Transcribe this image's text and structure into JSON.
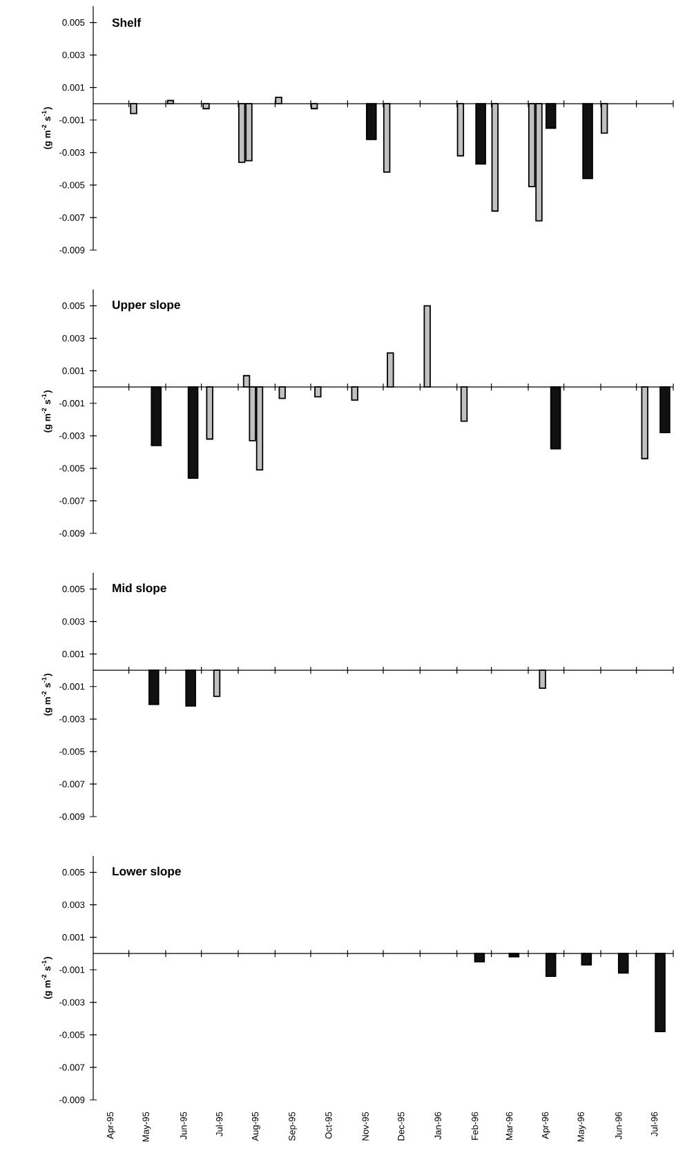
{
  "chart_data": [
    {
      "type": "bar",
      "title": "Shelf",
      "ylabel": "(g m$^{-2}$ s$^{-1}$)",
      "xlim": [
        "1995-04-01",
        "1996-08-01"
      ],
      "ylim": [
        -0.009,
        0.006
      ],
      "yticks": [
        -0.009,
        -0.007,
        -0.005,
        -0.003,
        -0.001,
        0.001,
        0.003,
        0.005
      ],
      "tick_labels": "y",
      "xticks": [
        {
          "value": "1995-04-01",
          "label": null
        },
        {
          "value": "1995-05-01",
          "label": null
        },
        {
          "value": "1995-06-01",
          "label": null
        },
        {
          "value": "1995-07-01",
          "label": null
        },
        {
          "value": "1995-08-01",
          "label": null
        },
        {
          "value": "1995-09-01",
          "label": null
        },
        {
          "value": "1995-10-01",
          "label": null
        },
        {
          "value": "1995-11-01",
          "label": null
        },
        {
          "value": "1995-12-01",
          "label": null
        },
        {
          "value": "1996-01-01",
          "label": null
        },
        {
          "value": "1996-02-01",
          "label": null
        },
        {
          "value": "1996-03-01",
          "label": null
        },
        {
          "value": "1996-04-01",
          "label": null
        },
        {
          "value": "1996-05-01",
          "label": null
        },
        {
          "value": "1996-06-01",
          "label": null
        },
        {
          "value": "1996-07-01",
          "label": null
        },
        {
          "value": "1996-08-01",
          "label": null
        }
      ],
      "series": [
        {
          "color": "#c0c0c0",
          "x": [
            "1995-05-05",
            "1995-06-05",
            "1995-07-05",
            "1995-08-04",
            "1995-08-10",
            "1995-09-04",
            "1995-10-04",
            "1995-12-04",
            "1996-02-04",
            "1996-03-04",
            "1996-04-04",
            "1996-04-10",
            "1996-06-04"
          ],
          "values": [
            -0.0006,
            0.0002,
            -0.0003,
            -0.0036,
            -0.0035,
            0.0004,
            -0.0003,
            -0.0042,
            -0.0032,
            -0.0066,
            -0.0051,
            -0.0072,
            -0.0018
          ]
        },
        {
          "color": "#111111",
          "x": [
            "1995-11-21",
            "1996-02-21",
            "1996-04-20",
            "1996-05-21"
          ],
          "values": [
            -0.0022,
            -0.0037,
            -0.0015,
            -0.0046
          ]
        }
      ]
    },
    {
      "type": "bar",
      "title": "Upper slope",
      "ylabel": "(g m$^{-2}$ s$^{-1}$)",
      "xlim": [
        "1995-04-01",
        "1996-08-01"
      ],
      "ylim": [
        -0.009,
        0.006
      ],
      "yticks": [
        -0.009,
        -0.007,
        -0.005,
        -0.003,
        -0.001,
        0.001,
        0.003,
        0.005
      ],
      "tick_labels": "y",
      "xticks": [
        {
          "value": "1995-04-01",
          "label": null
        },
        {
          "value": "1995-05-01",
          "label": null
        },
        {
          "value": "1995-06-01",
          "label": null
        },
        {
          "value": "1995-07-01",
          "label": null
        },
        {
          "value": "1995-08-01",
          "label": null
        },
        {
          "value": "1995-09-01",
          "label": null
        },
        {
          "value": "1995-10-01",
          "label": null
        },
        {
          "value": "1995-11-01",
          "label": null
        },
        {
          "value": "1995-12-01",
          "label": null
        },
        {
          "value": "1996-01-01",
          "label": null
        },
        {
          "value": "1996-02-01",
          "label": null
        },
        {
          "value": "1996-03-01",
          "label": null
        },
        {
          "value": "1996-04-01",
          "label": null
        },
        {
          "value": "1996-05-01",
          "label": null
        },
        {
          "value": "1996-06-01",
          "label": null
        },
        {
          "value": "1996-07-01",
          "label": null
        },
        {
          "value": "1996-08-01",
          "label": null
        }
      ],
      "series": [
        {
          "color": "#c0c0c0",
          "x": [
            "1995-07-08",
            "1995-08-08",
            "1995-08-13",
            "1995-08-19",
            "1995-09-07",
            "1995-10-07",
            "1995-11-07",
            "1995-12-07",
            "1996-01-07",
            "1996-02-07",
            "1996-07-08"
          ],
          "values": [
            -0.0032,
            0.0007,
            -0.0033,
            -0.0051,
            -0.0007,
            -0.0006,
            -0.0008,
            0.0021,
            0.005,
            -0.0021,
            -0.0044
          ]
        },
        {
          "color": "#111111",
          "x": [
            "1995-05-24",
            "1995-06-24",
            "1996-04-24",
            "1996-07-25"
          ],
          "values": [
            -0.0036,
            -0.0056,
            -0.0038,
            -0.0028
          ]
        }
      ]
    },
    {
      "type": "bar",
      "title": "Mid slope",
      "ylabel": "(g m$^{-2}$ s$^{-1}$)",
      "xlim": [
        "1995-04-01",
        "1996-08-01"
      ],
      "ylim": [
        -0.009,
        0.006
      ],
      "yticks": [
        -0.009,
        -0.007,
        -0.005,
        -0.003,
        -0.001,
        0.001,
        0.003,
        0.005
      ],
      "tick_labels": "y",
      "xticks": [
        {
          "value": "1995-04-01",
          "label": null
        },
        {
          "value": "1995-05-01",
          "label": null
        },
        {
          "value": "1995-06-01",
          "label": null
        },
        {
          "value": "1995-07-01",
          "label": null
        },
        {
          "value": "1995-08-01",
          "label": null
        },
        {
          "value": "1995-09-01",
          "label": null
        },
        {
          "value": "1995-10-01",
          "label": null
        },
        {
          "value": "1995-11-01",
          "label": null
        },
        {
          "value": "1995-12-01",
          "label": null
        },
        {
          "value": "1996-01-01",
          "label": null
        },
        {
          "value": "1996-02-01",
          "label": null
        },
        {
          "value": "1996-03-01",
          "label": null
        },
        {
          "value": "1996-04-01",
          "label": null
        },
        {
          "value": "1996-05-01",
          "label": null
        },
        {
          "value": "1996-06-01",
          "label": null
        },
        {
          "value": "1996-07-01",
          "label": null
        },
        {
          "value": "1996-08-01",
          "label": null
        }
      ],
      "series": [
        {
          "color": "#c0c0c0",
          "x": [
            "1995-07-14",
            "1996-04-13"
          ],
          "values": [
            -0.0016,
            -0.0011
          ]
        },
        {
          "color": "#111111",
          "x": [
            "1995-05-22",
            "1995-06-22"
          ],
          "values": [
            -0.0021,
            -0.0022
          ]
        }
      ]
    },
    {
      "type": "bar",
      "title": "Lower slope",
      "ylabel": "(g m$^{-2}$ s$^{-1}$)",
      "xlim": [
        "1995-04-01",
        "1996-08-01"
      ],
      "ylim": [
        -0.009,
        0.006
      ],
      "yticks": [
        -0.009,
        -0.007,
        -0.005,
        -0.003,
        -0.001,
        0.001,
        0.003,
        0.005
      ],
      "xticks": [
        {
          "value": "1995-04-01",
          "label": null
        },
        {
          "value": "1995-05-01",
          "label": null
        },
        {
          "value": "1995-06-01",
          "label": null
        },
        {
          "value": "1995-07-01",
          "label": null
        },
        {
          "value": "1995-08-01",
          "label": null
        },
        {
          "value": "1995-09-01",
          "label": null
        },
        {
          "value": "1995-10-01",
          "label": null
        },
        {
          "value": "1995-11-01",
          "label": null
        },
        {
          "value": "1995-12-01",
          "label": null
        },
        {
          "value": "1996-01-01",
          "label": null
        },
        {
          "value": "1996-02-01",
          "label": null
        },
        {
          "value": "1996-03-01",
          "label": null
        },
        {
          "value": "1996-04-01",
          "label": null
        },
        {
          "value": "1996-05-01",
          "label": null
        },
        {
          "value": "1996-06-01",
          "label": null
        },
        {
          "value": "1996-07-01",
          "label": null
        },
        {
          "value": "1996-08-01",
          "label": null
        },
        {
          "value": "1995-04-16",
          "label": "Apr-95"
        },
        {
          "value": "1995-05-16",
          "label": "May-95"
        },
        {
          "value": "1995-06-16",
          "label": "Jun-95"
        },
        {
          "value": "1995-07-16",
          "label": "Jul-95"
        },
        {
          "value": "1995-08-16",
          "label": "Aug-95"
        },
        {
          "value": "1995-09-16",
          "label": "Sep-95"
        },
        {
          "value": "1995-10-16",
          "label": "Oct-95"
        },
        {
          "value": "1995-11-16",
          "label": "Nov-95"
        },
        {
          "value": "1995-12-16",
          "label": "Dec-95"
        },
        {
          "value": "1996-01-16",
          "label": "Jan-96"
        },
        {
          "value": "1996-02-16",
          "label": "Feb-96"
        },
        {
          "value": "1996-03-16",
          "label": "Mar-96"
        },
        {
          "value": "1996-04-16",
          "label": "Apr-96"
        },
        {
          "value": "1996-05-16",
          "label": "May-96"
        },
        {
          "value": "1996-06-16",
          "label": "Jun-96"
        },
        {
          "value": "1996-07-16",
          "label": "Jul-96"
        }
      ],
      "series": [
        {
          "color": "#111111",
          "x": [
            "1996-02-20",
            "1996-03-20",
            "1996-04-20",
            "1996-05-20",
            "1996-06-20",
            "1996-07-21"
          ],
          "values": [
            -0.0005,
            -0.0002,
            -0.0014,
            -0.0007,
            -0.0012,
            -0.0048
          ]
        }
      ]
    }
  ]
}
